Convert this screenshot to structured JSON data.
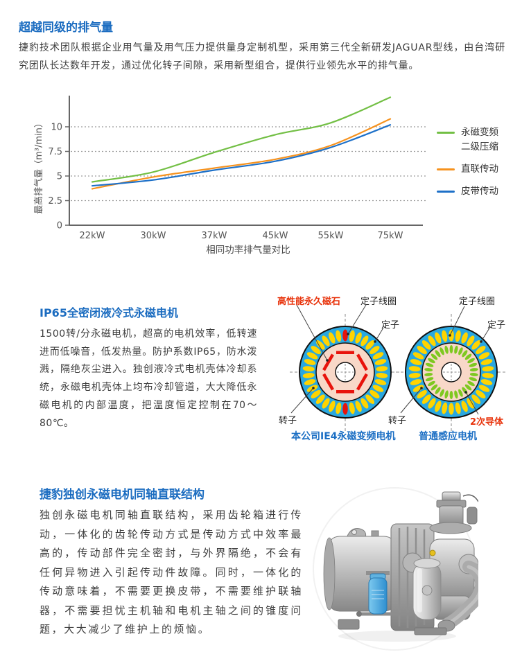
{
  "sections": {
    "exhaust": {
      "title": "超越同级的排气量",
      "body": "捷豹技术团队根据企业用气量及用气压力提供量身定制机型，采用第三代全新研发JAGUAR型线，由台湾研究团队长达数年开发，通过优化转子间隙，采用新型组合，提供行业领先水平的排气量。"
    },
    "motor": {
      "title": "IP65全密闭液冷式永磁电机",
      "body": "1500转/分永磁电机，超高的电机效率，低转速进而低噪音，低发热量。防护系数IP65，防水泼溅，隔绝灰尘进入。独创液冷式电机壳体冷却系统，永磁电机壳体上均布冷却管道，大大降低永磁电机的内部温度，把温度恒定控制在70～80℃。"
    },
    "coaxial": {
      "title": "捷豹独创永磁电机同轴直联结构",
      "body": "独创永磁电机同轴直联结构，采用齿轮箱进行传动，一体化的齿轮传动方式是传动方式中效率最高的，传动部件完全密封，与外界隔绝，不会有任何异物进入引起传动件故障。同时，一体化的传动意味着，不需要更换皮带，不需要维护联轴器，不需要担忧主机轴和电机主轴之间的锥度问题，大大减少了维护上的烦恼。"
    }
  },
  "chart_data": {
    "type": "line",
    "categories": [
      "22kW",
      "30kW",
      "37kW",
      "45kW",
      "55kW",
      "75kW"
    ],
    "series": [
      {
        "name": "永磁变频二级压缩",
        "color": "#72bf44",
        "values": [
          4.4,
          5.4,
          7.4,
          9.2,
          10.4,
          13.0
        ]
      },
      {
        "name": "直联传动",
        "color": "#f6921e",
        "values": [
          3.7,
          4.9,
          5.8,
          6.7,
          8.1,
          10.8
        ]
      },
      {
        "name": "皮带传动",
        "color": "#1d70c8",
        "values": [
          4.0,
          4.6,
          5.6,
          6.5,
          7.9,
          10.2
        ]
      }
    ],
    "xlabel": "相同功率排气量对比",
    "ylabel": "最高排气量（m³/min）",
    "yticks": [
      0,
      2.5,
      5,
      7.5,
      10
    ],
    "ylim": [
      0,
      13.5
    ],
    "grid": "horizontal-dotted",
    "legend_position": "right"
  },
  "legend": {
    "items": [
      {
        "line1": "永磁变频",
        "line2": "二级压缩",
        "color": "#72bf44"
      },
      {
        "line1": "直联传动",
        "line2": "",
        "color": "#f6921e"
      },
      {
        "line1": "皮带传动",
        "line2": "",
        "color": "#1d70c8"
      }
    ]
  },
  "diagram": {
    "left": {
      "caption": "本公司IE4永磁变频电机",
      "label_magnet": "高性能永久磁石",
      "label_stator_coil": "定子线圈",
      "label_stator": "定子",
      "label_rotor": "转子"
    },
    "right": {
      "caption": "普通感应电机",
      "label_stator_coil": "定子线圈",
      "label_stator": "定子",
      "label_rotor": "转子",
      "label_secondary": "2次导体"
    },
    "colors": {
      "stator_ring": "#29a8e0",
      "coil_slot": "#ffd400",
      "rotor_core": "#f8d8c8",
      "magnet_bar": "#e8130c",
      "conductor_bar": "#7ec820"
    }
  },
  "theme": {
    "heading_blue": "#1b6cc0",
    "label_red": "#e8320a",
    "caption_blue": "#1c6fc4",
    "body_text": "#3d3d3d",
    "axis_text": "#555555"
  }
}
